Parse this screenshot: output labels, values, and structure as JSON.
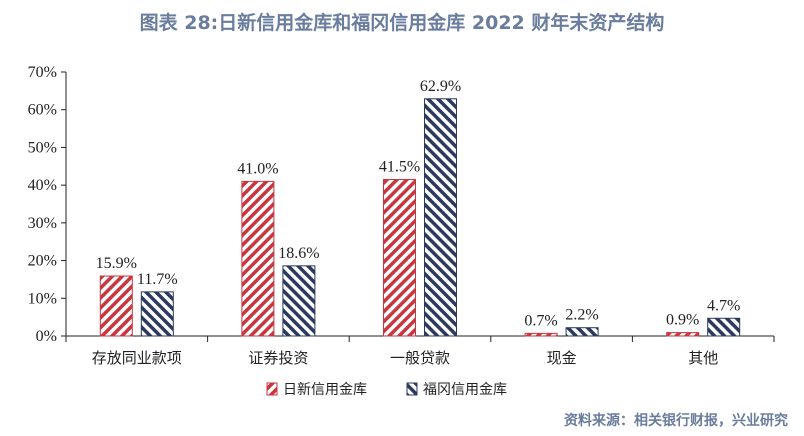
{
  "title": "图表 28:日新信用金库和福冈信用金库 2022 财年末资产结构",
  "source": "资料来源：相关银行财报，兴业研究",
  "chart_data": {
    "type": "bar",
    "categories": [
      "存放同业款项",
      "证券投资",
      "一般贷款",
      "现金",
      "其他"
    ],
    "series": [
      {
        "name": "日新信用金库",
        "values": [
          15.9,
          41.0,
          41.5,
          0.7,
          0.9
        ],
        "labels": [
          "15.9%",
          "41.0%",
          "41.5%",
          "0.7%",
          "0.9%"
        ],
        "color": "#c8363f",
        "pattern": "diagonal-right"
      },
      {
        "name": "福冈信用金库",
        "values": [
          11.7,
          18.6,
          62.9,
          2.2,
          4.7
        ],
        "labels": [
          "11.7%",
          "18.6%",
          "62.9%",
          "2.2%",
          "4.7%"
        ],
        "color": "#2b3a5e",
        "pattern": "diagonal-left"
      }
    ],
    "yticks": [
      "0%",
      "10%",
      "20%",
      "30%",
      "40%",
      "50%",
      "60%",
      "70%"
    ],
    "ylim": [
      0,
      70
    ],
    "legend_position": "bottom",
    "grid": false
  }
}
